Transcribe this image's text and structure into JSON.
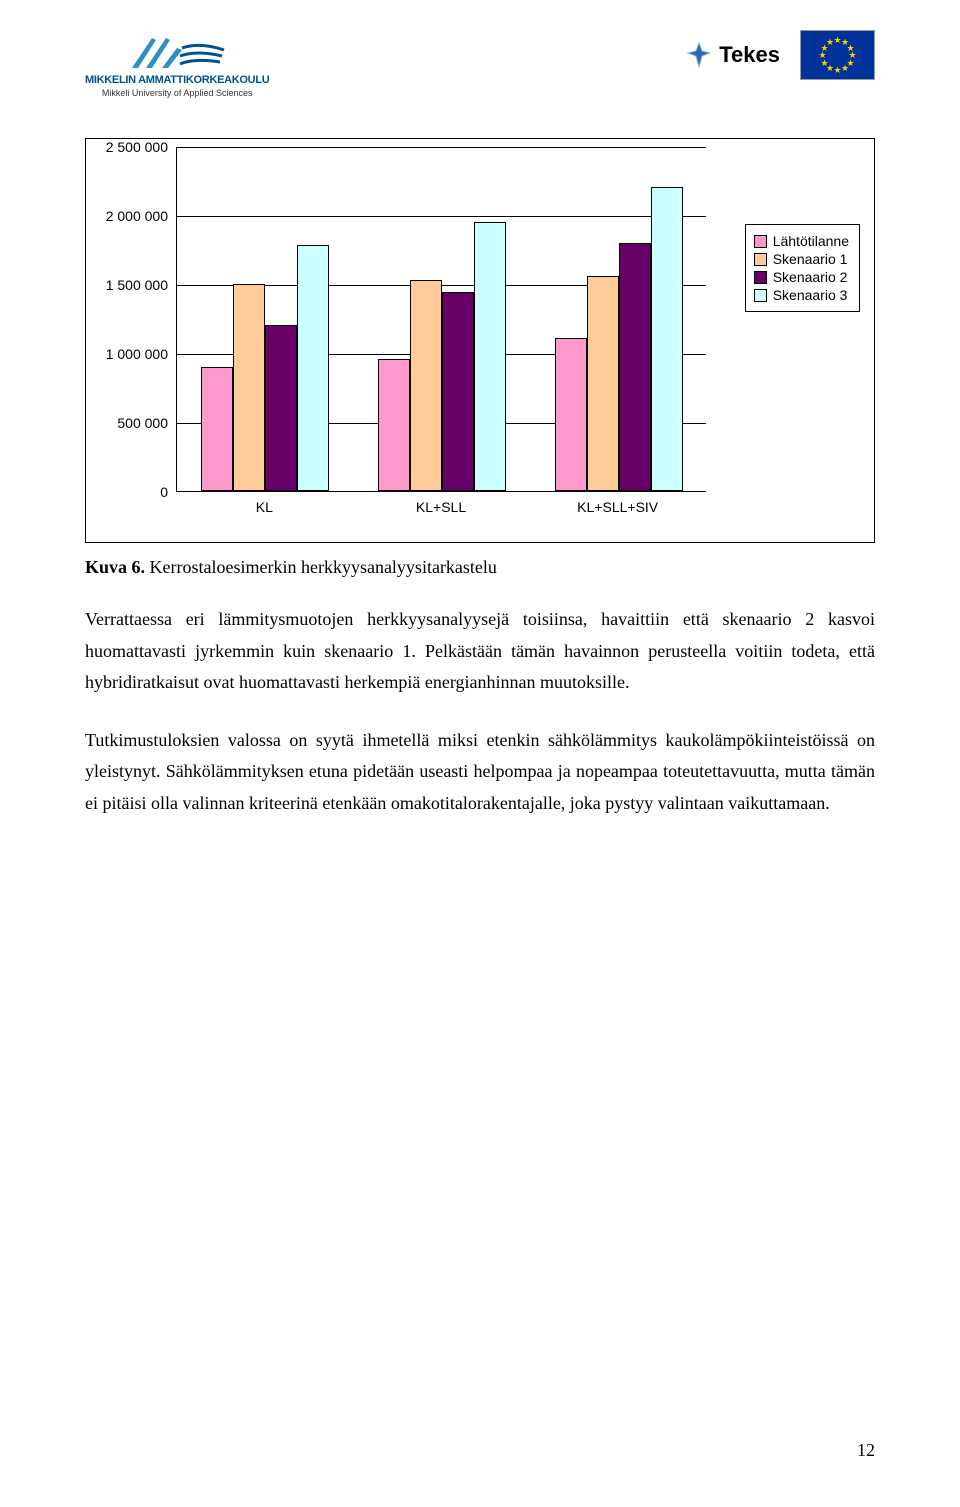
{
  "header": {
    "mamk_title": "MIKKELIN AMMATTIKORKEAKOULU",
    "mamk_sub": "Mikkeli University of Applied Sciences",
    "tekes_label": "Tekes"
  },
  "chart": {
    "type": "bar",
    "ymax": 2500000,
    "ymin": 0,
    "ytick_step": 500000,
    "ytick_labels": [
      "0",
      "500 000",
      "1 000 000",
      "1 500 000",
      "2 000 000",
      "2 500 000"
    ],
    "categories": [
      "KL",
      "KL+SLL",
      "KL+SLL+SIV"
    ],
    "series": [
      {
        "name": "Lähtötilanne",
        "color": "#ff99cc",
        "values": [
          900000,
          960000,
          1110000
        ]
      },
      {
        "name": "Skenaario 1",
        "color": "#ffcc99",
        "values": [
          1500000,
          1530000,
          1560000
        ]
      },
      {
        "name": "Skenaario 2",
        "color": "#660066",
        "values": [
          1200000,
          1440000,
          1800000
        ]
      },
      {
        "name": "Skenaario 3",
        "color": "#ccffff",
        "values": [
          1780000,
          1950000,
          2200000
        ]
      }
    ],
    "plot_bg": "#ffffff",
    "grid_color": "#000000",
    "bar_border": "#000000"
  },
  "caption": {
    "label": "Kuva 6.",
    "text": " Kerrostaloesimerkin herkkyysanalyysitarkastelu"
  },
  "paragraphs": [
    "Verrattaessa eri lämmitysmuotojen herkkyysanalyysejä toisiinsa, havaittiin että skenaario 2 kasvoi huomattavasti jyrkemmin kuin skenaario 1. Pelkästään tämän havainnon perusteella voitiin todeta, että hybridiratkaisut ovat huomattavasti herkempiä energianhinnan muutoksille.",
    "Tutkimustuloksien valossa on syytä ihmetellä miksi etenkin sähkölämmitys kaukolämpökiinteistöissä on yleistynyt. Sähkölämmityksen etuna pidetään useasti helpompaa ja nopeampaa toteutettavuutta, mutta tämän ei pitäisi olla valinnan kriteerinä etenkään omakotitalorakentajalle, joka pystyy valintaan vaikuttamaan."
  ],
  "page_number": "12"
}
